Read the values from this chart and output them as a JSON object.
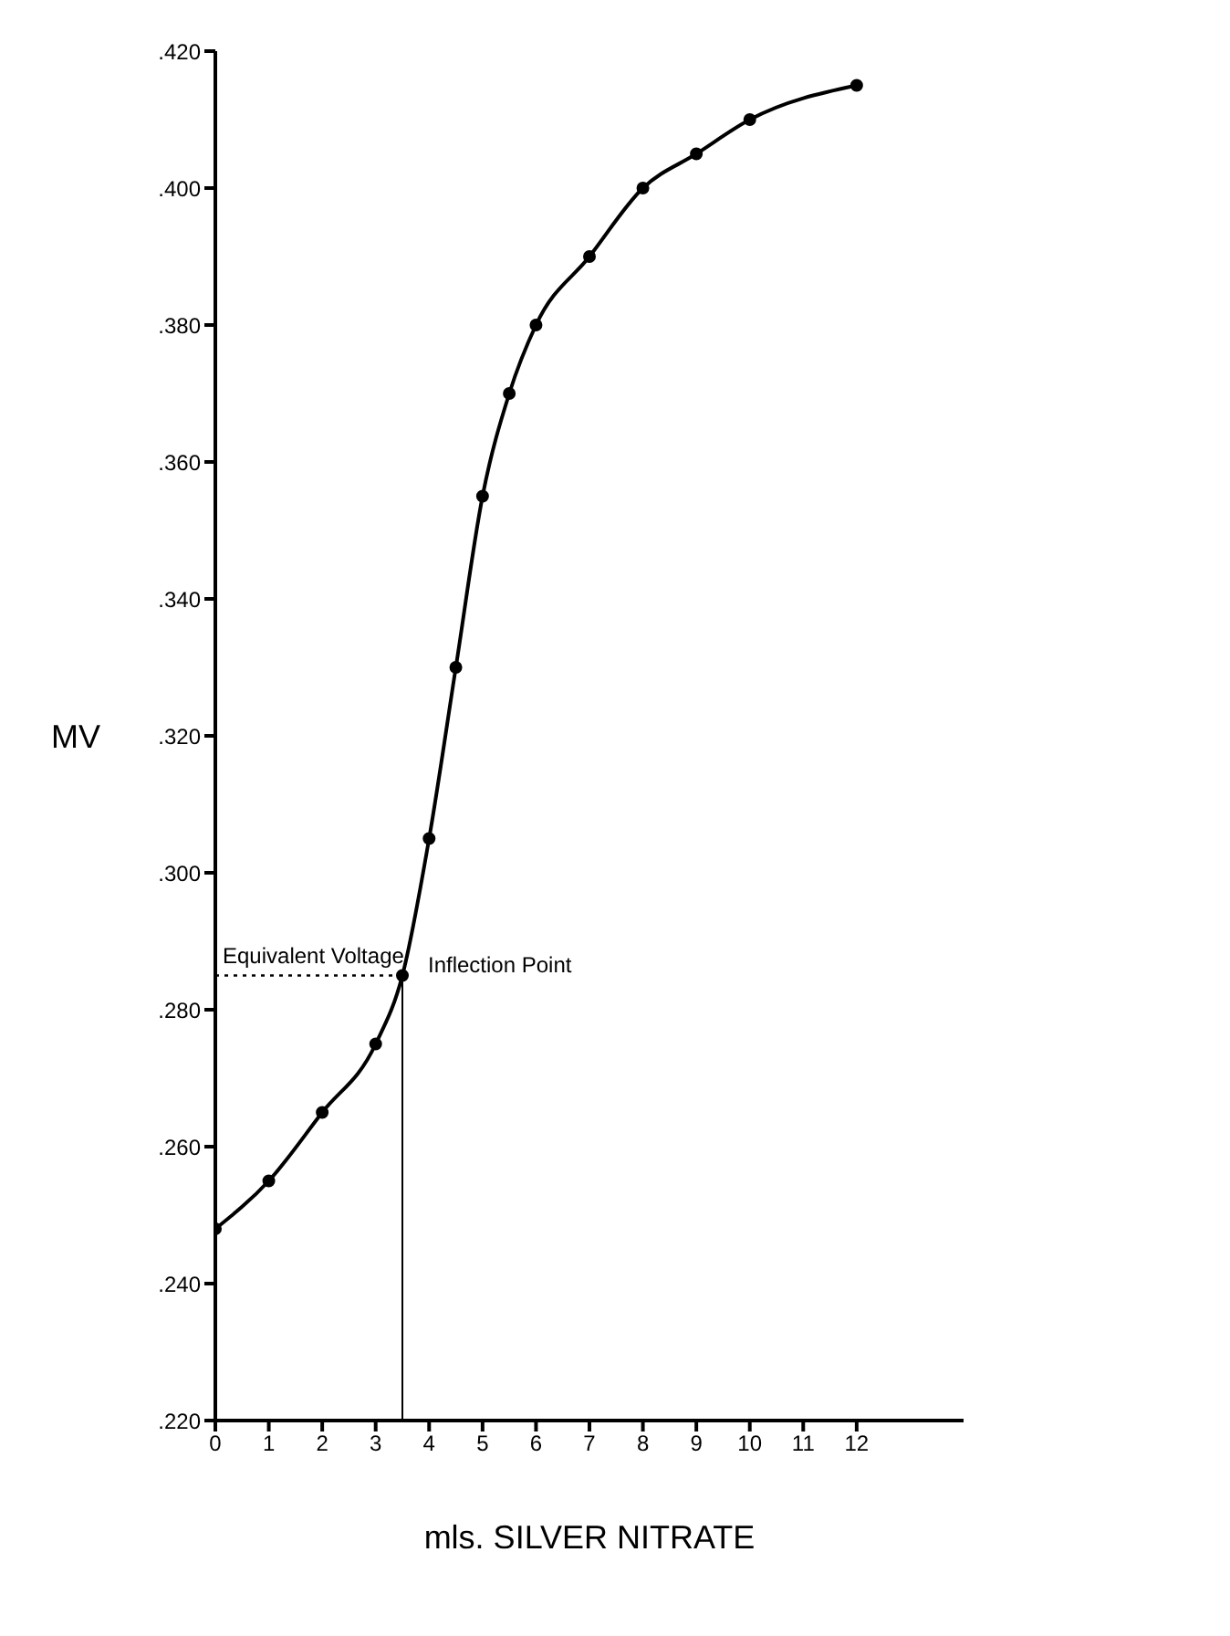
{
  "chart_data": {
    "type": "line",
    "xlabel": "mls. SILVER NITRATE",
    "ylabel": "MV",
    "x": [
      0,
      1,
      2,
      3,
      3.5,
      4,
      4.5,
      5,
      5.5,
      6,
      7,
      8,
      9,
      10,
      12
    ],
    "series": [
      {
        "color": "#000000",
        "values": [
          0.248,
          0.255,
          0.265,
          0.275,
          0.285,
          0.305,
          0.33,
          0.355,
          0.37,
          0.38,
          0.39,
          0.4,
          0.405,
          0.41,
          0.415
        ]
      }
    ],
    "xlim": [
      0,
      14
    ],
    "xticks": [
      0,
      1,
      2,
      3,
      4,
      5,
      6,
      7,
      8,
      9,
      10,
      11,
      12
    ],
    "ylim": [
      0.22,
      0.42
    ],
    "yticks": [
      {
        "value": 0.22,
        "label": ".220"
      },
      {
        "value": 0.24,
        "label": ".240"
      },
      {
        "value": 0.26,
        "label": ".260"
      },
      {
        "value": 0.28,
        "label": ".280"
      },
      {
        "value": 0.3,
        "label": ".300"
      },
      {
        "value": 0.32,
        "label": ".320"
      },
      {
        "value": 0.34,
        "label": ".340"
      },
      {
        "value": 0.36,
        "label": ".360"
      },
      {
        "value": 0.38,
        "label": ".380"
      },
      {
        "value": 0.4,
        "label": ".400"
      },
      {
        "value": 0.42,
        "label": ".420"
      }
    ],
    "ref_lines": [
      {
        "axis": "y",
        "value": 0.285,
        "label": "Equivalent Voltage",
        "line_style": "dotted"
      },
      {
        "axis": "x",
        "value": 3.5,
        "label": "Inflection Point",
        "line_style": "solid"
      }
    ],
    "marker": "circle",
    "line_style": "solid"
  }
}
